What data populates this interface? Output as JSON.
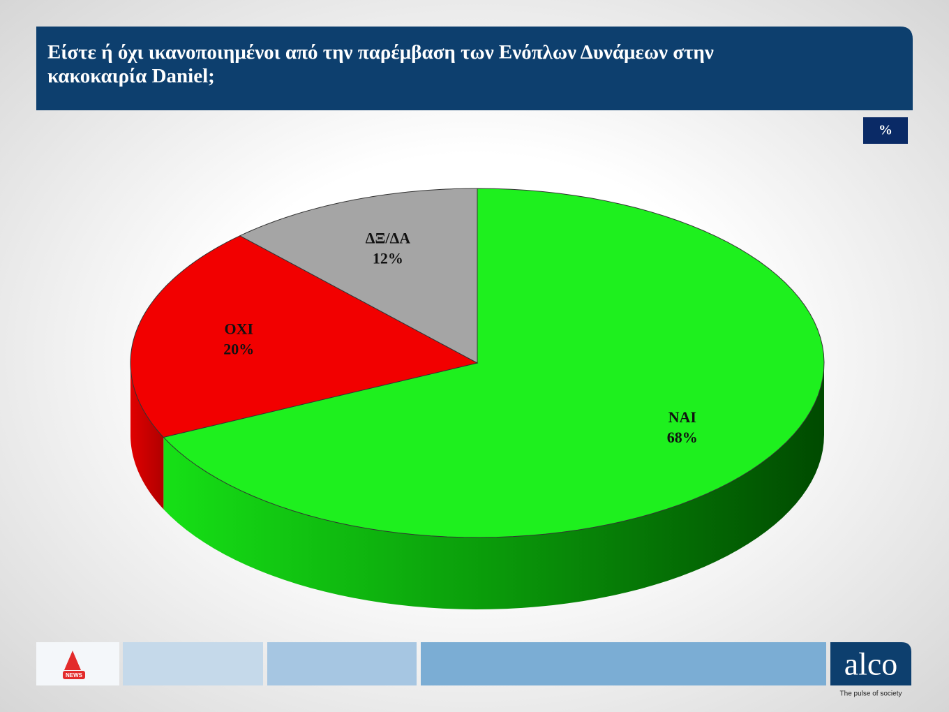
{
  "chart_data": {
    "type": "pie",
    "title": "Είστε ή όχι ικανοποιημένοι από την παρέμβαση των Ενόπλων Δυνάμεων στην κακοκαιρία Daniel;",
    "unit": "%",
    "categories": [
      "ΝΑΙ",
      "ΟΧΙ",
      "ΔΞ/ΔΑ"
    ],
    "values": [
      68,
      20,
      12
    ],
    "value_labels": [
      "68%",
      "20%",
      "12%"
    ],
    "colors": [
      "#1ef01e",
      "#f20000",
      "#a5a5a5"
    ]
  },
  "footer": {
    "news_logo": "NEWS",
    "brand": "alco",
    "tagline": "The pulse of society"
  }
}
